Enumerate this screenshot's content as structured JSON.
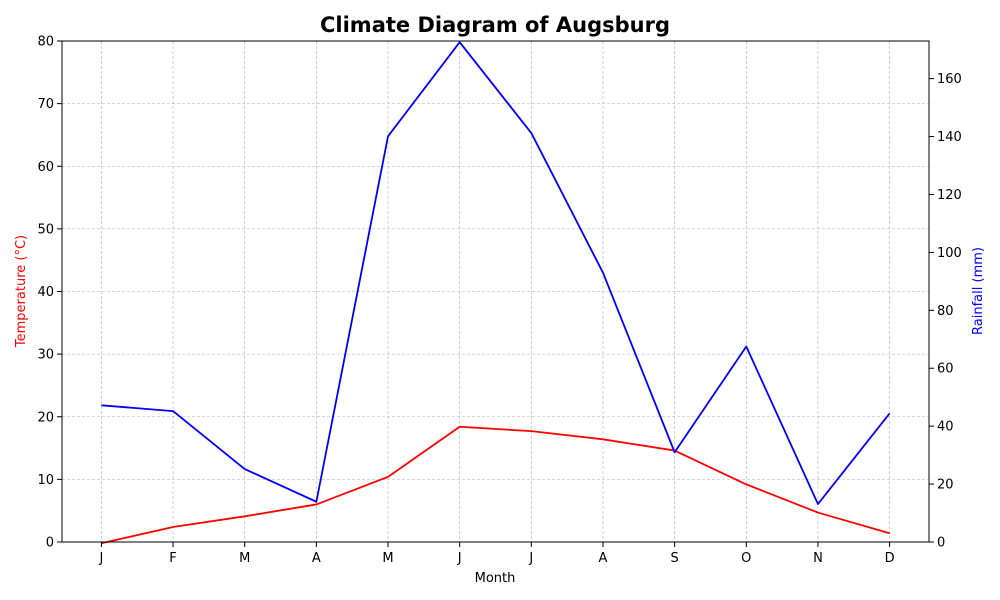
{
  "chart_data": {
    "type": "line",
    "title": "Climate Diagram of Augsburg",
    "xlabel": "Month",
    "categories": [
      "J",
      "F",
      "M",
      "A",
      "M",
      "J",
      "J",
      "A",
      "S",
      "O",
      "N",
      "D"
    ],
    "y_left": {
      "label": "Temperature (°C)",
      "lim": [
        0,
        80
      ],
      "ticks": [
        0,
        10,
        20,
        30,
        40,
        50,
        60,
        70,
        80
      ],
      "color": "#ff0000"
    },
    "y_right": {
      "label": "Rainfall (mm)",
      "lim": [
        0,
        173
      ],
      "ticks": [
        0,
        20,
        40,
        60,
        80,
        100,
        120,
        140,
        160
      ],
      "color": "#0000ff"
    },
    "series": [
      {
        "axis": "left",
        "color": "#ff0000",
        "values": [
          -0.2,
          2.4,
          4.1,
          6.0,
          10.4,
          18.4,
          17.7,
          16.4,
          14.6,
          9.2,
          4.7,
          1.4
        ]
      },
      {
        "axis": "right",
        "color": "#0000ff",
        "values": [
          47.2,
          45.2,
          25.2,
          13.9,
          140.1,
          172.6,
          141.2,
          93.0,
          31.0,
          67.5,
          13.1,
          44.4
        ]
      }
    ],
    "grid": true
  }
}
